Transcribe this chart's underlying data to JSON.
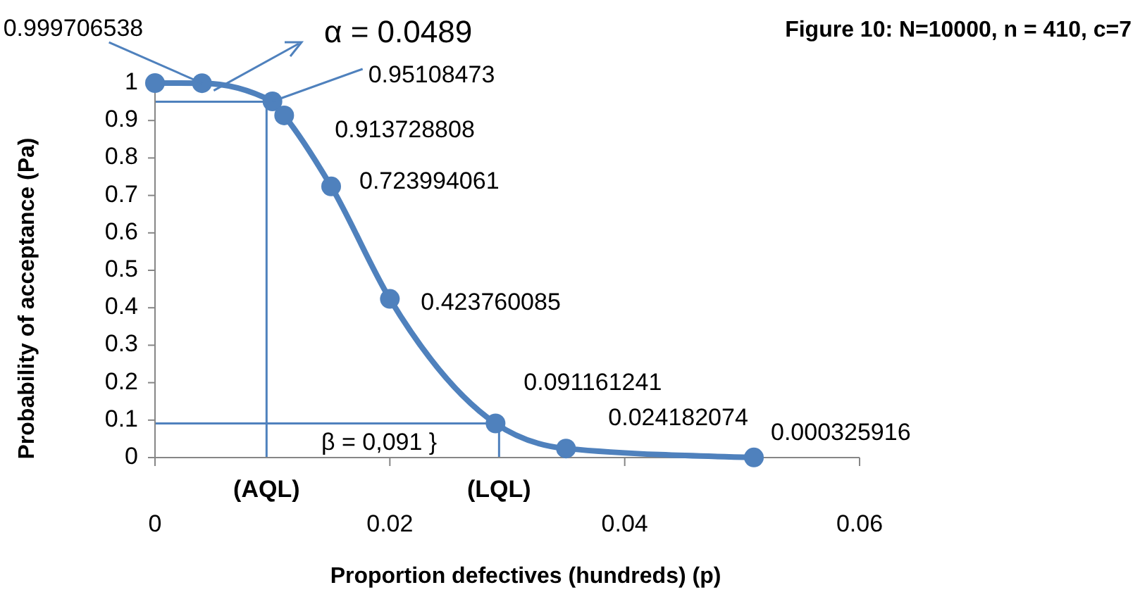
{
  "chart_data": {
    "type": "line",
    "title": "Figure 10: N=10000, n = 410, c=7",
    "xlabel": "Proportion defectives (hundreds) (p)",
    "ylabel": "Probability of acceptance (Pa)",
    "x": [
      0,
      0.004,
      0.01,
      0.011,
      0.015,
      0.02,
      0.029,
      0.035,
      0.051
    ],
    "series": [
      {
        "color": "#4f81bd",
        "values": [
          1,
          0.999706538,
          0.95108473,
          0.913728808,
          0.723994061,
          0.423760085,
          0.091161241,
          0.024182074,
          0.000325916
        ],
        "value_labels": [
          null,
          "0.999706538",
          "0.95108473",
          "0.913728808",
          "0.723994061",
          "0.423760085",
          "0.091161241",
          "0.024182074",
          "0.000325916"
        ]
      }
    ],
    "xlim": [
      0,
      0.06
    ],
    "xticks": [
      0,
      0.02,
      0.04,
      0.06
    ],
    "ylim": [
      0,
      1
    ],
    "yticks": [
      0,
      0.1,
      0.2,
      0.3,
      0.4,
      0.5,
      0.6,
      0.7,
      0.8,
      0.9,
      1
    ],
    "marker": "circle",
    "grid": false,
    "ref_lines": [
      {
        "axis": "x",
        "value": 0.0095,
        "label": "(AQL)",
        "color": "#4f81bd"
      },
      {
        "axis": "x",
        "value": 0.0293,
        "label": "(LQL)",
        "color": "#4f81bd"
      },
      {
        "axis": "y",
        "value": 0.95,
        "color": "#4f81bd"
      },
      {
        "axis": "y",
        "value": 0.091,
        "color": "#4f81bd"
      }
    ],
    "annotations": [
      {
        "text": "α = 0.0489",
        "x": 0.005,
        "y": 0.98
      },
      "β = 0,091 }"
    ]
  }
}
